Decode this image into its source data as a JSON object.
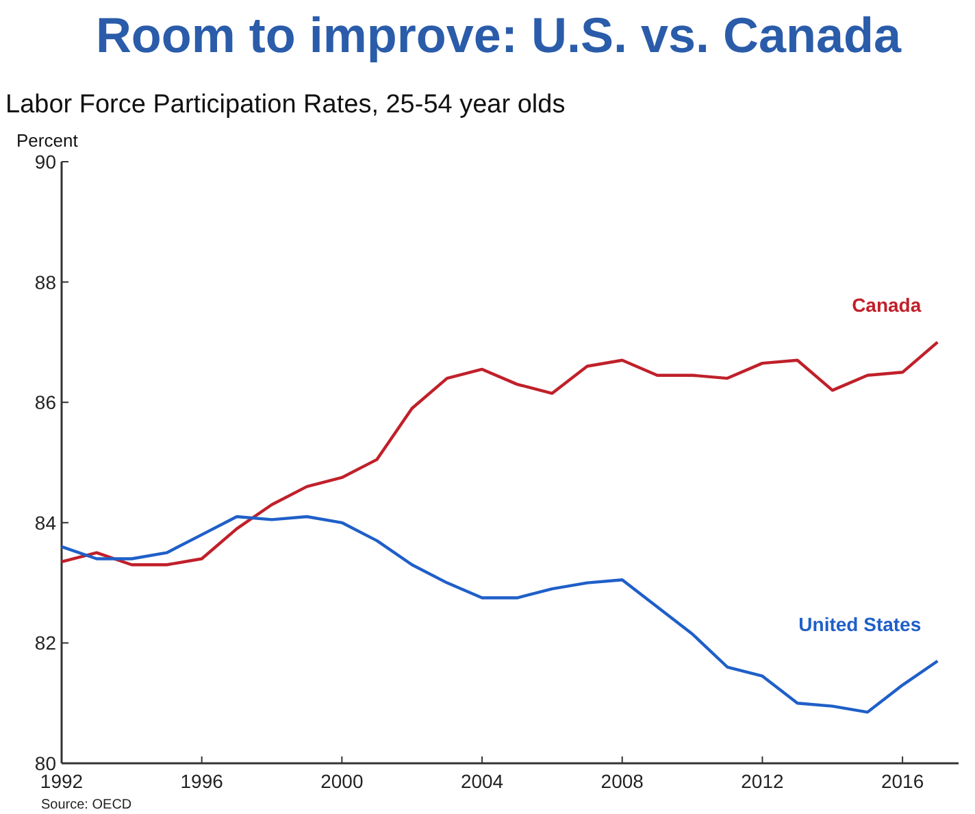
{
  "chart_data": {
    "type": "line",
    "title": "Room to improve: U.S. vs. Canada",
    "subtitle": "Labor Force Participation Rates, 25-54 year olds",
    "ylabel": "Percent",
    "annotations": [
      "Source: OECD"
    ],
    "x": [
      1992,
      1993,
      1994,
      1995,
      1996,
      1997,
      1998,
      1999,
      2000,
      2001,
      2002,
      2003,
      2004,
      2005,
      2006,
      2007,
      2008,
      2009,
      2010,
      2011,
      2012,
      2013,
      2014,
      2015,
      2016,
      2017
    ],
    "series": [
      {
        "name": "Canada",
        "color": "#c0202a",
        "values": [
          83.35,
          83.5,
          83.3,
          83.3,
          83.4,
          83.9,
          84.3,
          84.6,
          84.75,
          85.05,
          85.9,
          86.4,
          86.55,
          86.3,
          86.15,
          86.6,
          86.7,
          86.45,
          86.45,
          86.4,
          86.65,
          86.7,
          86.2,
          86.45,
          86.5,
          87.0
        ]
      },
      {
        "name": "United States",
        "color": "#1f5fc8",
        "values": [
          83.6,
          83.4,
          83.4,
          83.5,
          83.8,
          84.1,
          84.05,
          84.1,
          84.0,
          83.7,
          83.3,
          83.0,
          82.75,
          82.75,
          82.9,
          83.0,
          83.05,
          82.6,
          82.15,
          81.6,
          81.45,
          81.0,
          80.95,
          80.85,
          81.3,
          81.7
        ]
      }
    ],
    "xlim": [
      1992,
      2017.6
    ],
    "xticks": [
      1992,
      1996,
      2000,
      2004,
      2008,
      2012,
      2016
    ],
    "ylim": [
      80,
      90
    ],
    "yticks": [
      80,
      82,
      84,
      86,
      88,
      90
    ],
    "grid": false,
    "legend": false,
    "marker": "none",
    "line_style": "solid"
  }
}
